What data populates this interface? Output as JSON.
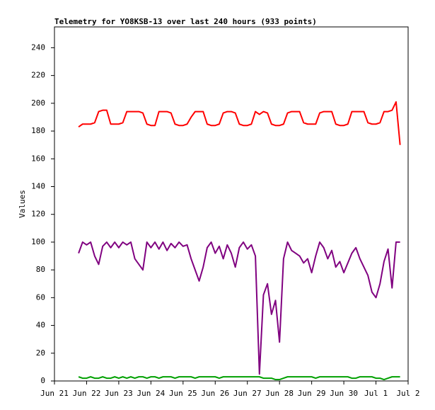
{
  "chart_data": {
    "type": "line",
    "title": "Telemetry for YO8KSB-13 over last 240 hours (933 points)",
    "y_label": "Values",
    "xlim": [
      0,
      11
    ],
    "xticks": [
      {
        "value": 0,
        "label": "Jun 21"
      },
      {
        "value": 1,
        "label": "Jun 22"
      },
      {
        "value": 2,
        "label": "Jun 23"
      },
      {
        "value": 3,
        "label": "Jun 24"
      },
      {
        "value": 4,
        "label": "Jun 25"
      },
      {
        "value": 5,
        "label": "Jun 26"
      },
      {
        "value": 6,
        "label": "Jun 27"
      },
      {
        "value": 7,
        "label": "Jun 28"
      },
      {
        "value": 8,
        "label": "Jun 29"
      },
      {
        "value": 9,
        "label": "Jun 30"
      },
      {
        "value": 10,
        "label": "Jul 1"
      },
      {
        "value": 11,
        "label": "Jul 2"
      }
    ],
    "ylim": [
      0,
      255
    ],
    "yticks": [
      0,
      20,
      40,
      60,
      80,
      100,
      120,
      140,
      160,
      180,
      200,
      220,
      240
    ],
    "x": [
      0.75,
      0.875,
      1,
      1.125,
      1.25,
      1.375,
      1.5,
      1.625,
      1.75,
      1.875,
      2,
      2.125,
      2.25,
      2.375,
      2.5,
      2.625,
      2.75,
      2.875,
      3,
      3.125,
      3.25,
      3.375,
      3.5,
      3.625,
      3.75,
      3.875,
      4,
      4.125,
      4.25,
      4.375,
      4.5,
      4.625,
      4.75,
      4.875,
      5,
      5.125,
      5.25,
      5.375,
      5.5,
      5.625,
      5.75,
      5.875,
      6,
      6.125,
      6.25,
      6.375,
      6.5,
      6.625,
      6.75,
      6.875,
      7,
      7.125,
      7.25,
      7.375,
      7.5,
      7.625,
      7.75,
      7.875,
      8,
      8.125,
      8.25,
      8.375,
      8.5,
      8.625,
      8.75,
      8.875,
      9,
      9.125,
      9.25,
      9.375,
      9.5,
      9.625,
      9.75,
      9.875,
      10,
      10.125,
      10.25,
      10.375,
      10.5,
      10.625,
      10.75
    ],
    "series": [
      {
        "color": "#ff0000",
        "values": [
          183,
          185,
          185,
          185,
          186,
          194,
          195,
          195,
          185,
          185,
          185,
          186,
          194,
          194,
          194,
          194,
          193,
          185,
          184,
          184,
          194,
          194,
          194,
          193,
          185,
          184,
          184,
          185,
          190,
          194,
          194,
          194,
          185,
          184,
          184,
          185,
          193,
          194,
          194,
          193,
          185,
          184,
          184,
          185,
          194,
          192,
          194,
          193,
          185,
          184,
          184,
          185,
          193,
          194,
          194,
          194,
          186,
          185,
          185,
          185,
          193,
          194,
          194,
          194,
          185,
          184,
          184,
          185,
          194,
          194,
          194,
          194,
          186,
          185,
          185,
          186,
          194,
          194,
          195,
          201,
          170
        ]
      },
      {
        "color": "#800080",
        "values": [
          92,
          100,
          98,
          100,
          90,
          84,
          97,
          100,
          96,
          100,
          96,
          100,
          98,
          100,
          88,
          84,
          80,
          100,
          96,
          100,
          95,
          100,
          94,
          99,
          96,
          100,
          97,
          98,
          88,
          80,
          72,
          82,
          96,
          100,
          92,
          97,
          88,
          98,
          92,
          82,
          96,
          100,
          95,
          98,
          90,
          5,
          62,
          70,
          48,
          58,
          28,
          88,
          100,
          94,
          92,
          90,
          85,
          88,
          78,
          90,
          100,
          96,
          88,
          94,
          82,
          86,
          78,
          85,
          92,
          96,
          88,
          82,
          76,
          64,
          60,
          70,
          86,
          95,
          67,
          100,
          100
        ]
      },
      {
        "color": "#00a000",
        "values": [
          3,
          2,
          2,
          3,
          2,
          2,
          3,
          2,
          2,
          3,
          2,
          3,
          2,
          3,
          2,
          3,
          3,
          2,
          3,
          3,
          2,
          3,
          3,
          3,
          2,
          3,
          3,
          3,
          3,
          2,
          3,
          3,
          3,
          3,
          3,
          2,
          3,
          3,
          3,
          3,
          3,
          3,
          3,
          3,
          3,
          3,
          2,
          2,
          2,
          1,
          1,
          2,
          3,
          3,
          3,
          3,
          3,
          3,
          3,
          2,
          3,
          3,
          3,
          3,
          3,
          3,
          3,
          3,
          2,
          2,
          3,
          3,
          3,
          3,
          2,
          2,
          1,
          2,
          3,
          3,
          3
        ]
      }
    ]
  }
}
